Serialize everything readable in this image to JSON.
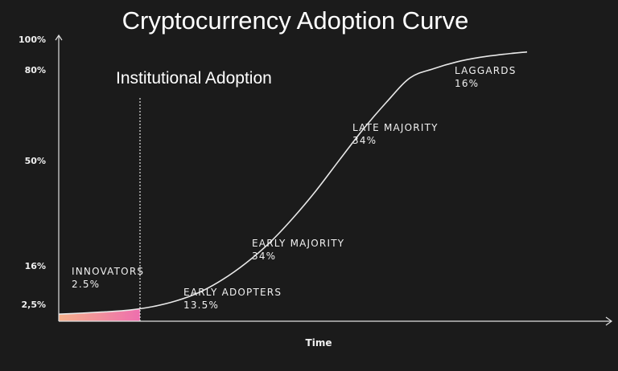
{
  "title": "Cryptocurrency Adoption Curve",
  "annotation": "Institutional Adoption",
  "colors": {
    "background": "#1b1b1b",
    "axis": "#e0e0e0",
    "curve": "#e8e8e8",
    "text": "#f0f0f0",
    "innovators_fill_start": "#f5b08a",
    "innovators_fill_end": "#ee6fae"
  },
  "chart_data": {
    "type": "line",
    "title": "Cryptocurrency Adoption Curve",
    "xlabel": "Time",
    "ylabel": "",
    "ylim": [
      0,
      100
    ],
    "y_ticks": [
      {
        "value": 2.5,
        "label": "2,5%"
      },
      {
        "value": 16,
        "label": "16%"
      },
      {
        "value": 50,
        "label": "50%"
      },
      {
        "value": 80,
        "label": "80%"
      },
      {
        "value": 100,
        "label": "100%"
      }
    ],
    "x": [
      0,
      5,
      10,
      15,
      20,
      25,
      30,
      35,
      40,
      45,
      50,
      55,
      60,
      65,
      70,
      75,
      80,
      85,
      90,
      95,
      100
    ],
    "y": [
      2,
      2.3,
      2.7,
      3.3,
      4.5,
      6.5,
      9.5,
      14,
      19.5,
      26,
      34,
      43,
      53,
      63,
      72,
      80,
      86,
      90.5,
      93.5,
      95.5,
      97
    ],
    "xlim": [
      0,
      100
    ],
    "grid": false,
    "legend": "none",
    "segments": [
      {
        "name": "INNOVATORS",
        "share": "2.5%"
      },
      {
        "name": "EARLY ADOPTERS",
        "share": "13.5%"
      },
      {
        "name": "EARLY MAJORITY",
        "share": "34%"
      },
      {
        "name": "LATE MAJORITY",
        "share": "34%"
      },
      {
        "name": "LAGGARDS",
        "share": "16%"
      }
    ],
    "highlighted_segment": "INNOVATORS",
    "divider_after_segment": "INNOVATORS"
  }
}
